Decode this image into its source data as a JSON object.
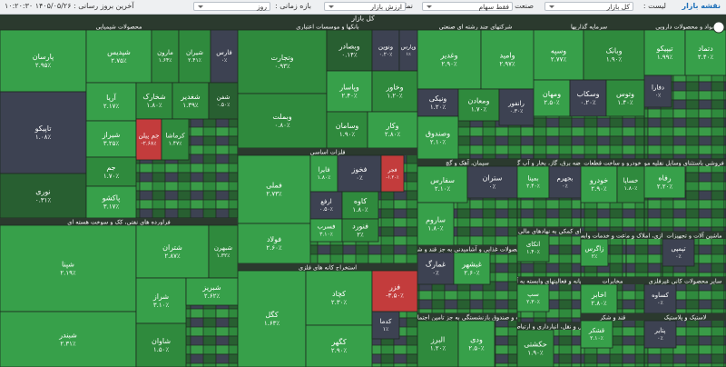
{
  "toolbar": {
    "title": "نقشه بازار",
    "list_label": "لیست :",
    "list_value": "کل بازار",
    "industry_label": "صنعت :",
    "industry_value": "فقط سهام",
    "display_label": "نمایش :",
    "display_value": "ارزش بازار",
    "period_label": "بازه زمانی :",
    "period_value": "روز",
    "updated": "آخرین بروز رسانی : ۱۴۰۵/۰۵/۲۶ ۱۰:۲۰:۳۰"
  },
  "map": {
    "title": "کل بازار",
    "sectors": [
      {
        "title": "محصولات شیمیایی",
        "tiles": [
          {
            "name": "پارسان",
            "change": "۲.۹۵٪"
          },
          {
            "name": "شپدیس",
            "change": "۲.۷۵٪"
          },
          {
            "name": "مارون",
            "change": "۱.۶۴٪"
          },
          {
            "name": "شیران",
            "change": "۲.۴۱٪"
          },
          {
            "name": "فارس",
            "change": "۰٪"
          },
          {
            "name": "تاپیکو",
            "change": "۱.۰۸٪"
          },
          {
            "name": "نوری",
            "change": "۰.۳۱٪"
          },
          {
            "name": "آریا",
            "change": "۲.۱۷٪"
          },
          {
            "name": "شخارک",
            "change": "۱.۸۰٪"
          },
          {
            "name": "شغدیر",
            "change": "۱.۳۹٪"
          },
          {
            "name": "شفن",
            "change": "۰.۵۰٪"
          },
          {
            "name": "شیراز",
            "change": "۳.۲۵٪"
          },
          {
            "name": "جم پیلن",
            "change": "-۲.۶۸٪"
          },
          {
            "name": "کرماشا",
            "change": "۱.۴۷٪"
          },
          {
            "name": "جم",
            "change": "۱.۷۰٪"
          },
          {
            "name": "پاکشو",
            "change": "۳.۱۷٪"
          }
        ]
      },
      {
        "title": "فراورده های نفتی، کک و سوخت هسته ای",
        "tiles": [
          {
            "name": "شپنا",
            "change": "۲.۱۹٪"
          },
          {
            "name": "شبندر",
            "change": "۲.۳۱٪"
          },
          {
            "name": "شتران",
            "change": "۲.۸۷٪"
          },
          {
            "name": "شبهرن",
            "change": "۱.۳۲٪"
          },
          {
            "name": "شراز",
            "change": "۳.۱۰٪"
          },
          {
            "name": "شبریز",
            "change": "۲.۶۲٪"
          },
          {
            "name": "شاوان",
            "change": "۱.۵۰٪"
          }
        ]
      },
      {
        "title": "بانکها و موسسات اعتباری",
        "tiles": [
          {
            "name": "وتجارت",
            "change": "۰.۹۳٪"
          },
          {
            "name": "وبصادر",
            "change": "۰.۱۴٪"
          },
          {
            "name": "ونوین",
            "change": "۰.۲۰٪"
          },
          {
            "name": "وپارس",
            "change": "۱٪"
          },
          {
            "name": "وبملت",
            "change": "۰.۸۰٪"
          },
          {
            "name": "وپاسار",
            "change": "۲.۴۰٪"
          },
          {
            "name": "وخاور",
            "change": "۱.۲۰٪"
          },
          {
            "name": "وسامان",
            "change": "۱.۹۰٪"
          },
          {
            "name": "وکار",
            "change": "۲.۸۰٪"
          }
        ]
      },
      {
        "title": "فلزات اساسی",
        "tiles": [
          {
            "name": "فملی",
            "change": "۲.۷۳٪"
          },
          {
            "name": "فولاد",
            "change": "۲.۶۰٪"
          },
          {
            "name": "فایرا",
            "change": "۱.۸۰٪"
          },
          {
            "name": "فخوز",
            "change": "۰٪"
          },
          {
            "name": "فجر",
            "change": "-۱.۲۰٪"
          },
          {
            "name": "ارفع",
            "change": "۰.۵۰٪"
          },
          {
            "name": "کاوه",
            "change": "۱.۸۰٪"
          },
          {
            "name": "فسرب",
            "change": "۳.۱۰٪"
          },
          {
            "name": "فنورد",
            "change": "۲٪"
          }
        ]
      },
      {
        "title": "استخراج کانه های فلزی",
        "tiles": [
          {
            "name": "کگل",
            "change": "۱.۶۳٪"
          },
          {
            "name": "کچاد",
            "change": "۲.۳۰٪"
          },
          {
            "name": "کگهر",
            "change": "۲.۹۰٪"
          },
          {
            "name": "فزر",
            "change": "-۳.۵۰٪"
          },
          {
            "name": "کدما",
            "change": "۱٪"
          }
        ]
      },
      {
        "title": "شرکتهای چند رشته ای صنعتی",
        "tiles": [
          {
            "name": "وغدیر",
            "change": "۲.۹۰٪"
          },
          {
            "name": "وامید",
            "change": "۲.۹۷٪"
          },
          {
            "name": "ونیکی",
            "change": "۱.۲۰٪"
          },
          {
            "name": "ومعادن",
            "change": "۱.۷۰٪"
          },
          {
            "name": "وصندوق",
            "change": "۲.۱۰٪"
          },
          {
            "name": "رانفور",
            "change": "۰.۳۰٪"
          }
        ]
      },
      {
        "title": "سرمایه گذاریها",
        "tiles": [
          {
            "name": "وسپه",
            "change": "۲.۷۷٪"
          },
          {
            "name": "وبانک",
            "change": "۱.۹۰٪"
          },
          {
            "name": "ومهان",
            "change": "۲.۵۰٪"
          },
          {
            "name": "وسکاب",
            "change": "۰.۲۰٪"
          },
          {
            "name": "وتوس",
            "change": "۱.۴۰٪"
          }
        ]
      },
      {
        "title": "مواد و محصولات دارویی",
        "tiles": [
          {
            "name": "تیپیکو",
            "change": "۱.۹۹٪"
          },
          {
            "name": "دتماد",
            "change": "۲.۴۰٪"
          },
          {
            "name": "دفارا",
            "change": "۰٪"
          }
        ]
      },
      {
        "title": "سیمان، آهک و گچ",
        "tiles": [
          {
            "name": "سفارس",
            "change": "۲.۱۰٪"
          },
          {
            "name": "ساروم",
            "change": "۱.۸۰٪"
          },
          {
            "name": "ستران",
            "change": "۰٪"
          }
        ]
      },
      {
        "title": "محصولات غذایی و آشامیدنی به جز قند و شکر",
        "tiles": [
          {
            "name": "غمارگ",
            "change": "۰٪"
          },
          {
            "name": "غبشهر",
            "change": "۲.۶۰٪"
          }
        ]
      },
      {
        "title": "بیمه و صندوق بازنشستگی به جز تامین اجتماعی",
        "tiles": [
          {
            "name": "البرز",
            "change": "۱.۲۰٪"
          },
          {
            "name": "ودی",
            "change": "۲.۵۰٪"
          }
        ]
      },
      {
        "title": "عرضه برق، گاز، بخار و آب گرم",
        "tiles": [
          {
            "name": "بمپنا",
            "change": "۲.۴۰٪"
          },
          {
            "name": "بجهرم",
            "change": "۰٪"
          }
        ]
      },
      {
        "title": "خودرو و ساخت قطعات",
        "tiles": [
          {
            "name": "خودرو",
            "change": "۲.۹۰٪"
          },
          {
            "name": "خساپا",
            "change": "۱.۸۰٪"
          }
        ]
      },
      {
        "title": "خرده فروشی باستثنای وسایل نقلیه موتوری",
        "tiles": [
          {
            "name": "رفاه",
            "change": "۲.۲۰٪"
          }
        ]
      },
      {
        "title": "فعالیتهای کمکی به نهادهای مالی واسط",
        "tiles": [
          {
            "name": "اتکای",
            "change": "۱.۴۰٪"
          }
        ]
      },
      {
        "title": "زراعت و خدمات وابسته",
        "tiles": [
          {
            "name": "زاگرس",
            "change": "۲٪"
          }
        ]
      },
      {
        "title": "انبوه سازی، املاک و مستغلات",
        "tiles": []
      },
      {
        "title": "ماشین آلات و تجهیزات",
        "tiles": [
          {
            "name": "تپمپی",
            "change": "۰٪"
          }
        ]
      },
      {
        "title": "رایانه و فعالیتهای وابسته به آن",
        "tiles": [
          {
            "name": "سپ",
            "change": "۲.۳۰٪"
          }
        ]
      },
      {
        "title": "مخابرات",
        "tiles": [
          {
            "name": "اخابر",
            "change": "۲.۸۰٪"
          }
        ]
      },
      {
        "title": "سایر محصولات کانی غیرفلزی",
        "tiles": [
          {
            "name": "کساوه",
            "change": "۰٪"
          }
        ]
      },
      {
        "title": "حمل و نقل، انبارداری و ارتباطات",
        "tiles": [
          {
            "name": "حکشتی",
            "change": "۱.۹۰٪"
          }
        ]
      },
      {
        "title": "قند و شکر",
        "tiles": [
          {
            "name": "قشکر",
            "change": "۲.۱۰٪"
          }
        ]
      },
      {
        "title": "لاستیک و پلاستیک",
        "tiles": [
          {
            "name": "پتایر",
            "change": "۰٪"
          }
        ]
      }
    ]
  }
}
